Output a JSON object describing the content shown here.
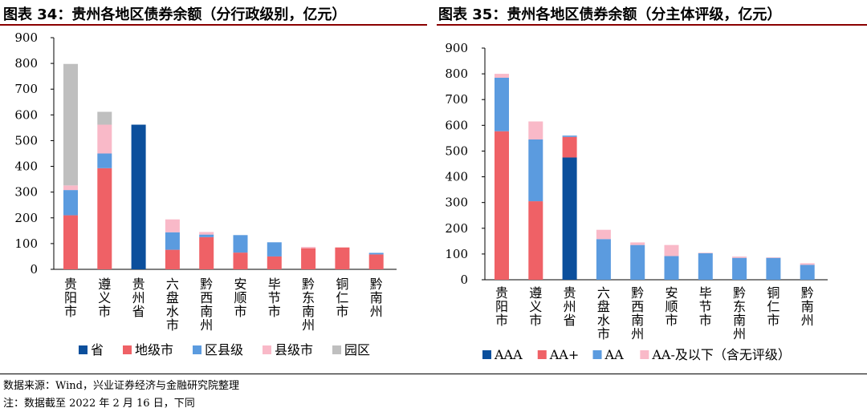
{
  "figures": [
    {
      "title": "图表 34：贵州各地区债券余额（分行政级别，亿元）"
    },
    {
      "title": "图表 35：贵州各地区债券余额（分主体评级，亿元）"
    }
  ],
  "notes": {
    "source": "数据来源：Wind，兴业证券经济与金融研究院整理",
    "cutoff": "注：数据截至 2022 年 2 月 16 日，下同"
  },
  "chart_data": [
    {
      "type": "bar",
      "stacked": true,
      "title": "图表 34：贵州各地区债券余额（分行政级别，亿元）",
      "categories": [
        "贵阳市",
        "遵义市",
        "贵州省",
        "六盘水市",
        "黔西南州",
        "安顺市",
        "毕节市",
        "黔东南州",
        "铜仁市",
        "黔南州"
      ],
      "ylim": [
        0,
        900
      ],
      "yticks": [
        0,
        100,
        200,
        300,
        400,
        500,
        600,
        700,
        800,
        900
      ],
      "legend_position": "bottom",
      "series": [
        {
          "name": "省",
          "color": "#0b4f9c",
          "values": [
            0,
            0,
            562,
            0,
            0,
            0,
            0,
            0,
            0,
            0
          ]
        },
        {
          "name": "地级市",
          "color": "#ef6166",
          "values": [
            210,
            393,
            0,
            76,
            125,
            65,
            50,
            82,
            85,
            58
          ]
        },
        {
          "name": "区县级",
          "color": "#5b9bdf",
          "values": [
            98,
            57,
            0,
            68,
            10,
            68,
            55,
            0,
            0,
            6
          ]
        },
        {
          "name": "县级市",
          "color": "#f9b9c8",
          "values": [
            18,
            112,
            0,
            50,
            10,
            0,
            0,
            5,
            0,
            0
          ]
        },
        {
          "name": "园区",
          "color": "#bfbfbf",
          "values": [
            472,
            50,
            0,
            0,
            0,
            0,
            0,
            0,
            0,
            0
          ]
        }
      ]
    },
    {
      "type": "bar",
      "stacked": true,
      "title": "图表 35：贵州各地区债券余额（分主体评级，亿元）",
      "categories": [
        "贵阳市",
        "遵义市",
        "贵州省",
        "六盘水市",
        "黔西南州",
        "安顺市",
        "毕节市",
        "黔东南州",
        "铜仁市",
        "黔南州"
      ],
      "ylim": [
        0,
        900
      ],
      "yticks": [
        0,
        100,
        200,
        300,
        400,
        500,
        600,
        700,
        800,
        900
      ],
      "legend_position": "bottom",
      "series": [
        {
          "name": "AAA",
          "color": "#0b4f9c",
          "values": [
            0,
            0,
            475,
            0,
            0,
            0,
            0,
            0,
            0,
            0
          ]
        },
        {
          "name": "AA+",
          "color": "#ef6166",
          "values": [
            577,
            305,
            80,
            0,
            0,
            0,
            0,
            0,
            0,
            0
          ]
        },
        {
          "name": "AA",
          "color": "#5b9bdf",
          "values": [
            208,
            240,
            5,
            158,
            135,
            92,
            103,
            85,
            85,
            58
          ]
        },
        {
          "name": "AA-及以下（含无评级）",
          "color": "#f9b9c8",
          "values": [
            15,
            70,
            0,
            36,
            10,
            43,
            2,
            5,
            2,
            6
          ]
        }
      ]
    }
  ]
}
